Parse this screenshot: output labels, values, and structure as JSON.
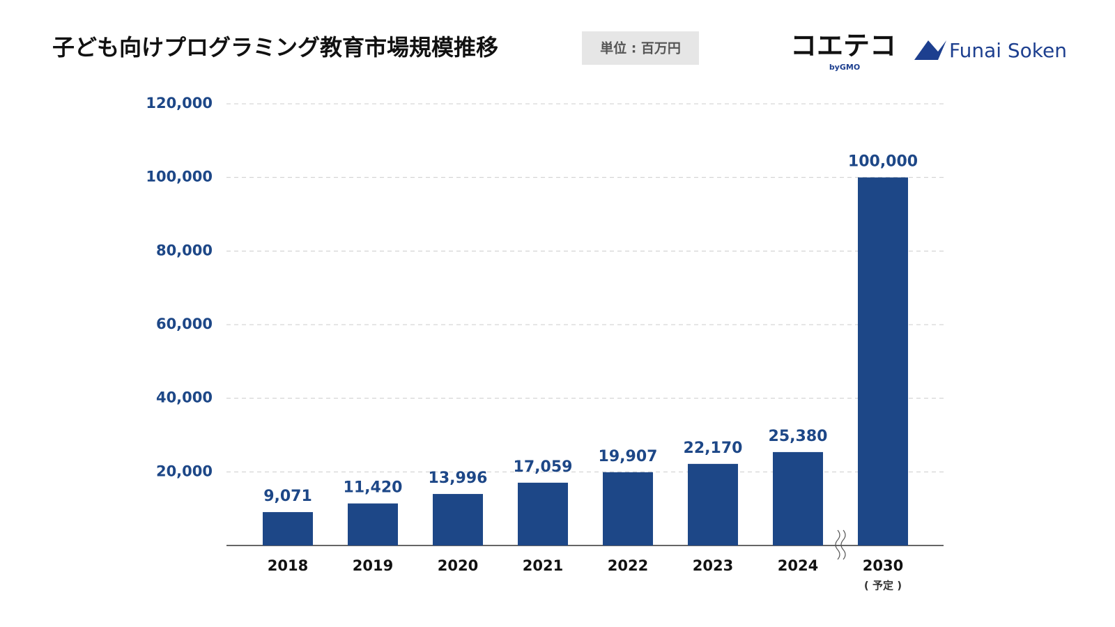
{
  "chart_data": {
    "type": "bar",
    "title": "子ども向けプログラミング教育市場規模推移",
    "unit": "単位 : 百万円",
    "brands": [
      "コエテコ",
      "byGMO",
      "Funai Soken"
    ],
    "categories": [
      "2018",
      "2019",
      "2020",
      "2021",
      "2022",
      "2023",
      "2024",
      "2030"
    ],
    "category_notes": [
      null,
      null,
      null,
      null,
      null,
      null,
      null,
      "( 予定 )"
    ],
    "values": [
      9071,
      11420,
      13996,
      17059,
      19907,
      22170,
      25380,
      100000
    ],
    "value_labels": [
      "9,071",
      "11,420",
      "13,996",
      "17,059",
      "19,907",
      "22,170",
      "25,380",
      "100,000"
    ],
    "color": "#1d4787",
    "ylim": [
      0,
      120000
    ],
    "yticks": [
      {
        "value": 20000,
        "label": "20,000"
      },
      {
        "value": 40000,
        "label": "40,000"
      },
      {
        "value": 60000,
        "label": "60,000"
      },
      {
        "value": 80000,
        "label": "80,000"
      },
      {
        "value": 100000,
        "label": "100,000"
      },
      {
        "value": 120000,
        "label": "120,000"
      }
    ],
    "grid": true
  }
}
